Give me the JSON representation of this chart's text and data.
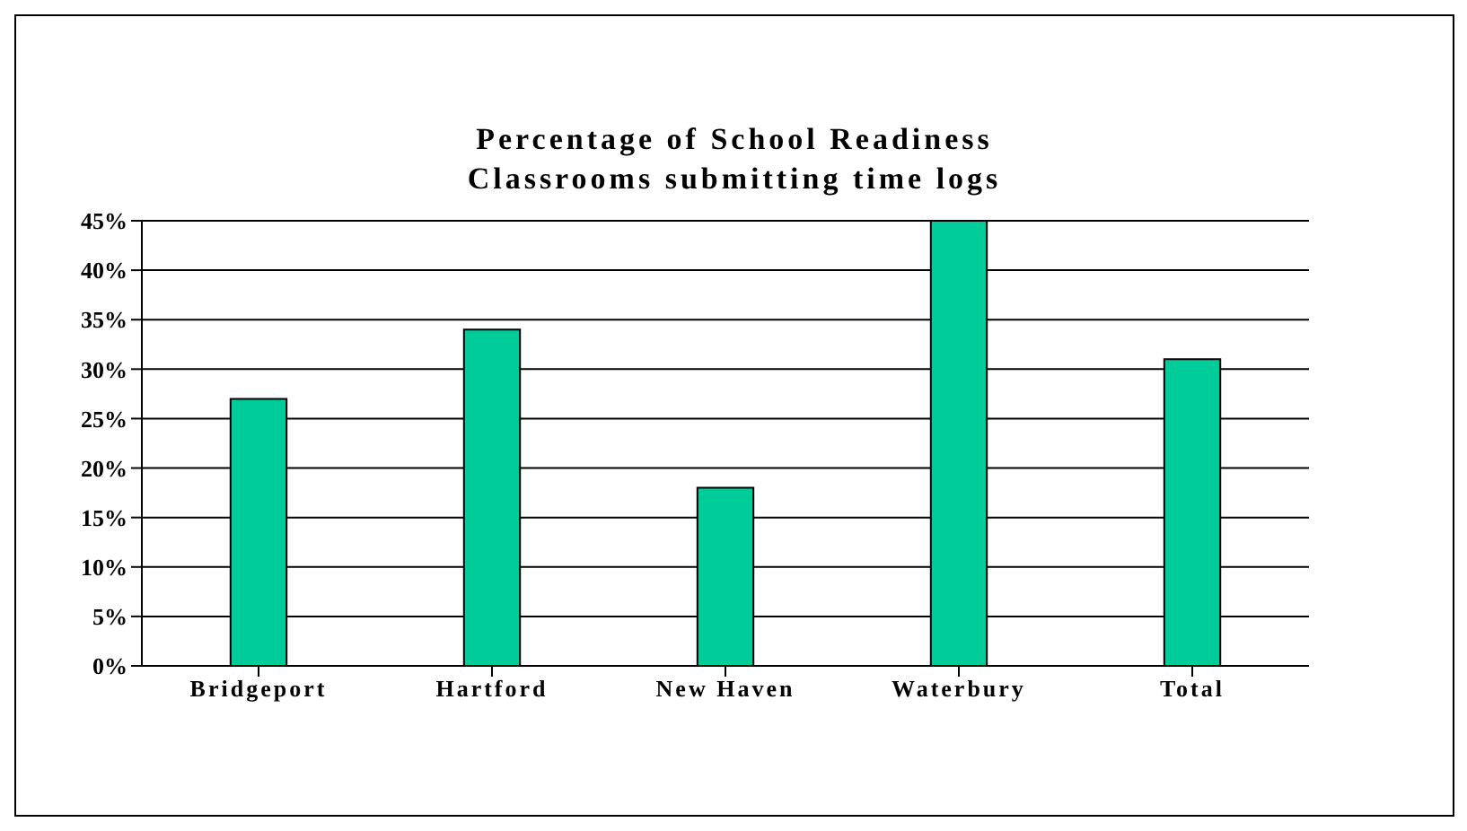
{
  "chart_data": {
    "type": "bar",
    "title": "Percentage of School Readiness\nClassrooms submitting time logs",
    "categories": [
      "Bridgeport",
      "Hartford",
      "New Haven",
      "Waterbury",
      "Total"
    ],
    "values": [
      27,
      34,
      18,
      45,
      31
    ],
    "color": "#00cc99",
    "ylim": [
      0,
      45
    ],
    "yticks": [
      {
        "value": 0,
        "label": "0%"
      },
      {
        "value": 5,
        "label": "5%"
      },
      {
        "value": 10,
        "label": "10%"
      },
      {
        "value": 15,
        "label": "15%"
      },
      {
        "value": 20,
        "label": "20%"
      },
      {
        "value": 25,
        "label": "25%"
      },
      {
        "value": 30,
        "label": "30%"
      },
      {
        "value": 35,
        "label": "35%"
      },
      {
        "value": 40,
        "label": "40%"
      },
      {
        "value": 45,
        "label": "45%"
      }
    ],
    "grid": "y",
    "legend": false
  }
}
